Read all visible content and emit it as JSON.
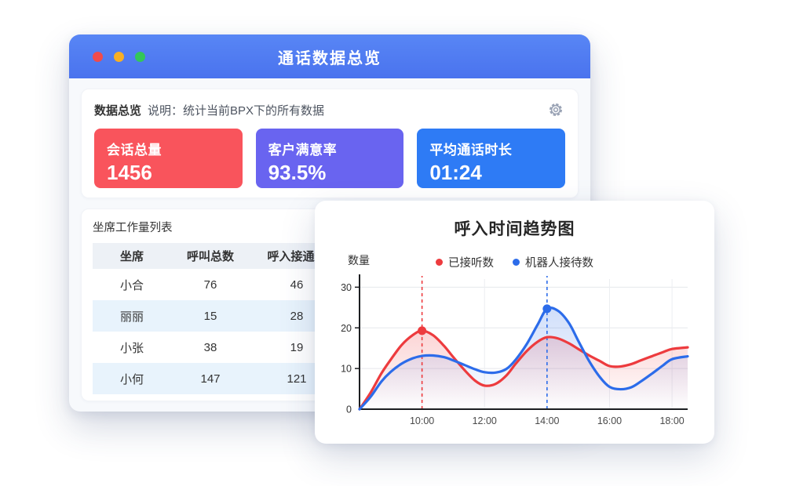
{
  "window": {
    "title": "通话数据总览",
    "overview": {
      "title": "数据总览",
      "description": "说明：统计当前BPX下的所有数据",
      "cards": [
        {
          "label": "会话总量",
          "value": "1456",
          "color": "#f9545c"
        },
        {
          "label": "客户满意率",
          "value": "93.5%",
          "color": "#6964f0"
        },
        {
          "label": "平均通话时长",
          "value": "01:24",
          "color": "#2e7bf5"
        }
      ]
    },
    "worklist": {
      "title": "坐席工作量列表",
      "columns": [
        "坐席",
        "呼叫总数",
        "呼入接通数"
      ],
      "rows": [
        [
          "小合",
          "76",
          "46"
        ],
        [
          "丽丽",
          "15",
          "28"
        ],
        [
          "小张",
          "38",
          "19"
        ],
        [
          "小何",
          "147",
          "121"
        ]
      ]
    }
  },
  "chart_card": {
    "title": "呼入时间趋势图"
  },
  "chart_data": {
    "type": "line",
    "title": "呼入时间趋势图",
    "xlabel": "",
    "ylabel": "数量",
    "xlim": [
      8,
      18.5
    ],
    "ylim": [
      0,
      32
    ],
    "grid": true,
    "legend_position": "top",
    "y_ticks": [
      0,
      10,
      20,
      30
    ],
    "x_ticks": [
      {
        "v": 10,
        "label": "10:00"
      },
      {
        "v": 12,
        "label": "12:00"
      },
      {
        "v": 14,
        "label": "14:00"
      },
      {
        "v": 16,
        "label": "16:00"
      },
      {
        "v": 18,
        "label": "18:00"
      }
    ],
    "series": [
      {
        "name": "已接听数",
        "color": "#ed3b3e",
        "points": [
          [
            8,
            0
          ],
          [
            8.35,
            4
          ],
          [
            8.7,
            8.8
          ],
          [
            9,
            12.2
          ],
          [
            9.35,
            15.8
          ],
          [
            9.7,
            18.2
          ],
          [
            10,
            19.3
          ],
          [
            10.35,
            18.2
          ],
          [
            10.7,
            15.6
          ],
          [
            11,
            12.8
          ],
          [
            11.35,
            9.7
          ],
          [
            11.7,
            7
          ],
          [
            12,
            5.8
          ],
          [
            12.35,
            6.2
          ],
          [
            12.7,
            8.3
          ],
          [
            13,
            11.2
          ],
          [
            13.35,
            14.3
          ],
          [
            13.7,
            16.6
          ],
          [
            14,
            17.7
          ],
          [
            14.35,
            17.4
          ],
          [
            14.7,
            16.2
          ],
          [
            15,
            14.8
          ],
          [
            15.35,
            13.2
          ],
          [
            15.7,
            11.8
          ],
          [
            16,
            10.6
          ],
          [
            16.35,
            10.5
          ],
          [
            16.7,
            11.1
          ],
          [
            17,
            12
          ],
          [
            17.35,
            13
          ],
          [
            17.7,
            14
          ],
          [
            18,
            14.8
          ],
          [
            18.5,
            15.2
          ]
        ]
      },
      {
        "name": "机器人接待数",
        "color": "#2c6cea",
        "points": [
          [
            8,
            0
          ],
          [
            8.35,
            3
          ],
          [
            8.7,
            6.8
          ],
          [
            9,
            9.2
          ],
          [
            9.35,
            11.2
          ],
          [
            9.7,
            12.5
          ],
          [
            10,
            13.1
          ],
          [
            10.35,
            13.2
          ],
          [
            10.7,
            12.8
          ],
          [
            11,
            12
          ],
          [
            11.35,
            10.9
          ],
          [
            11.7,
            9.8
          ],
          [
            12,
            9.1
          ],
          [
            12.35,
            9
          ],
          [
            12.7,
            9.9
          ],
          [
            13,
            12.2
          ],
          [
            13.35,
            16
          ],
          [
            13.7,
            20.8
          ],
          [
            14,
            24.7
          ],
          [
            14.35,
            24.2
          ],
          [
            14.7,
            21.2
          ],
          [
            15,
            16.8
          ],
          [
            15.35,
            11.8
          ],
          [
            15.7,
            7.8
          ],
          [
            16,
            5.5
          ],
          [
            16.35,
            4.9
          ],
          [
            16.7,
            5.4
          ],
          [
            17,
            6.8
          ],
          [
            17.35,
            8.7
          ],
          [
            17.7,
            10.7
          ],
          [
            18,
            12.3
          ],
          [
            18.5,
            13
          ]
        ]
      }
    ],
    "markers": [
      {
        "series": 0,
        "x": 10,
        "y": 19.3
      },
      {
        "series": 1,
        "x": 14,
        "y": 24.7
      }
    ],
    "guides": [
      {
        "series": 0,
        "x": 10
      },
      {
        "series": 1,
        "x": 14
      }
    ]
  }
}
